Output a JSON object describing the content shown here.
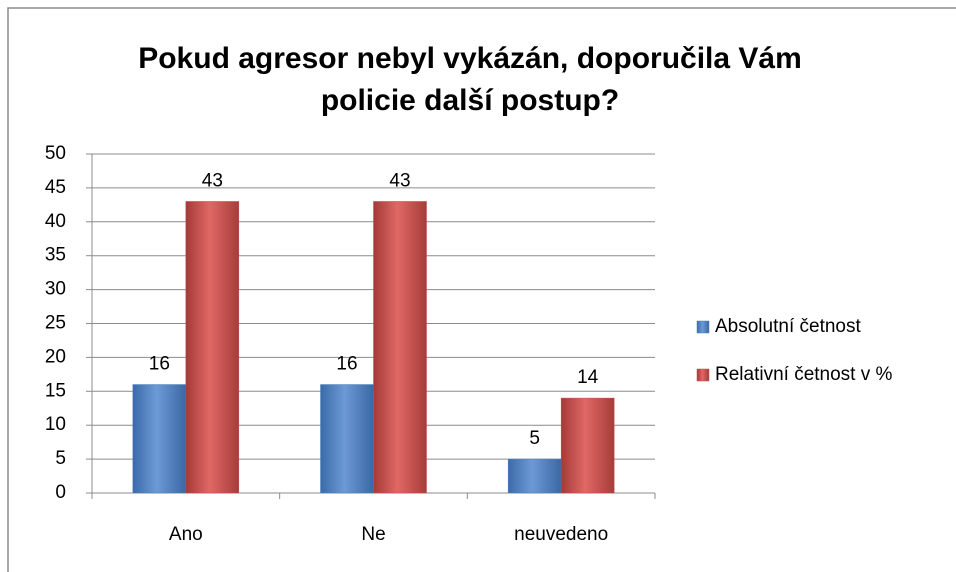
{
  "chart_data": {
    "type": "bar",
    "title": "Pokud agresor nebyl vykázán, doporučila Vám policie další postup?",
    "categories": [
      "Ano",
      "Ne",
      "neuvedeno"
    ],
    "series": [
      {
        "name": "Absolutní četnost",
        "color": "#4f81bd",
        "values": [
          16,
          16,
          5
        ]
      },
      {
        "name": "Relativní četnost v %",
        "color": "#c0504d",
        "values": [
          43,
          43,
          14
        ]
      }
    ],
    "ylim": [
      0,
      50
    ],
    "yticks": [
      0,
      5,
      10,
      15,
      20,
      25,
      30,
      35,
      40,
      45,
      50
    ],
    "grid": true,
    "legend": "right"
  }
}
